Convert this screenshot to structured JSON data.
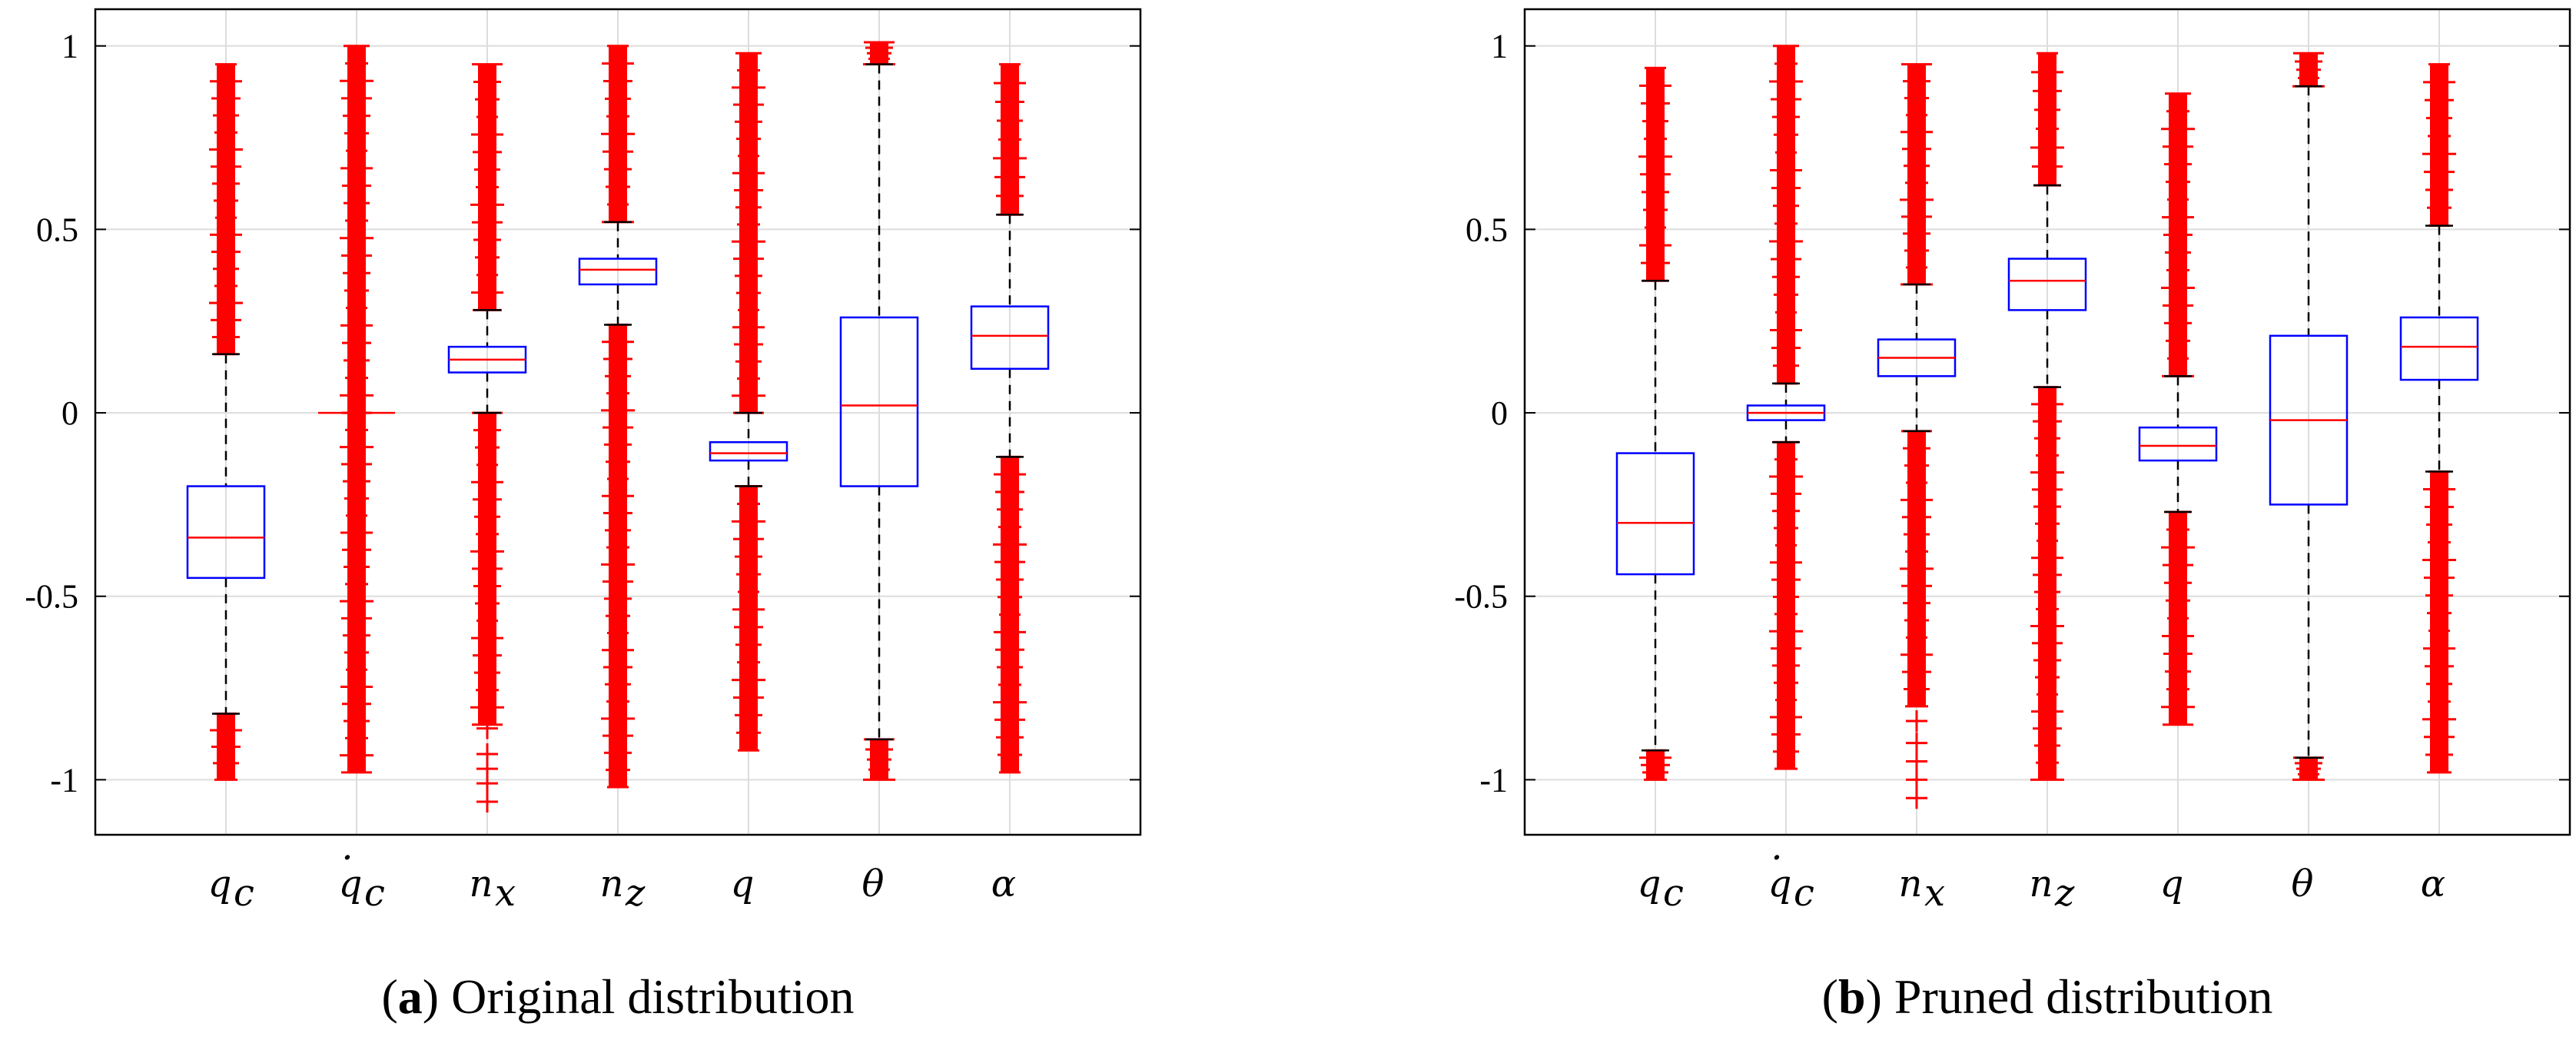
{
  "chart_data": [
    {
      "type": "box",
      "caption_open": "(",
      "caption_letter": "a",
      "caption_close": ")",
      "caption_text": "Original distribution",
      "ylim": [
        -1.15,
        1.1
      ],
      "yticks": [
        1,
        0.5,
        0,
        -0.5,
        -1
      ],
      "ytick_labels": [
        "1",
        "0.5",
        "0",
        "-0.5",
        "-1"
      ],
      "grid": true,
      "categories": [
        "q",
        "q",
        "n",
        "n",
        "q",
        "θ",
        "α"
      ],
      "category_subscripts": [
        "c",
        "c",
        "x",
        "z",
        "",
        "",
        ""
      ],
      "category_dots": [
        false,
        true,
        false,
        false,
        false,
        false,
        false
      ],
      "boxes": [
        {
          "q1": -0.45,
          "median": -0.34,
          "q3": -0.2,
          "whisker_low": -0.82,
          "whisker_high": 0.16,
          "outliers_low": [
            -1.0,
            -0.82
          ],
          "outliers_high": [
            0.16,
            0.95
          ]
        },
        {
          "q1": 0.0,
          "median": 0.0,
          "q3": 0.0,
          "whisker_low": 0.0,
          "whisker_high": 0.0,
          "outliers_low": [
            -0.98,
            0.0
          ],
          "outliers_high": [
            0.0,
            1.0
          ]
        },
        {
          "q1": 0.11,
          "median": 0.145,
          "q3": 0.18,
          "whisker_low": 0.0,
          "whisker_high": 0.28,
          "outliers_low": [
            -0.85,
            0.0
          ],
          "outliers_high": [
            0.28,
            0.95
          ],
          "sparse_low": [
            -0.86,
            -0.93,
            -0.97,
            -1.01,
            -1.06
          ]
        },
        {
          "q1": 0.35,
          "median": 0.39,
          "q3": 0.42,
          "whisker_low": 0.24,
          "whisker_high": 0.52,
          "outliers_low": [
            -1.02,
            0.24
          ],
          "outliers_high": [
            0.52,
            1.0
          ]
        },
        {
          "q1": -0.13,
          "median": -0.11,
          "q3": -0.08,
          "whisker_low": -0.2,
          "whisker_high": 0.0,
          "outliers_low": [
            -0.92,
            -0.2
          ],
          "outliers_high": [
            0.0,
            0.98
          ]
        },
        {
          "q1": -0.2,
          "median": 0.02,
          "q3": 0.26,
          "whisker_low": -0.89,
          "whisker_high": 0.95,
          "outliers_low": [
            -1.0,
            -0.89
          ],
          "outliers_high": [
            0.95,
            1.01
          ]
        },
        {
          "q1": 0.12,
          "median": 0.21,
          "q3": 0.29,
          "whisker_low": -0.12,
          "whisker_high": 0.54,
          "outliers_low": [
            -0.98,
            -0.12
          ],
          "outliers_high": [
            0.54,
            0.95
          ]
        }
      ]
    },
    {
      "type": "box",
      "caption_open": "(",
      "caption_letter": "b",
      "caption_close": ")",
      "caption_text": "Pruned distribution",
      "ylim": [
        -1.15,
        1.1
      ],
      "yticks": [
        1,
        0.5,
        0,
        -0.5,
        -1
      ],
      "ytick_labels": [
        "1",
        "0.5",
        "0",
        "-0.5",
        "-1"
      ],
      "grid": true,
      "categories": [
        "q",
        "q",
        "n",
        "n",
        "q",
        "θ",
        "α"
      ],
      "category_subscripts": [
        "c",
        "c",
        "x",
        "z",
        "",
        "",
        ""
      ],
      "category_dots": [
        false,
        true,
        false,
        false,
        false,
        false,
        false
      ],
      "boxes": [
        {
          "q1": -0.44,
          "median": -0.3,
          "q3": -0.11,
          "whisker_low": -0.92,
          "whisker_high": 0.36,
          "outliers_low": [
            -1.0,
            -0.92
          ],
          "outliers_high": [
            0.36,
            0.94
          ]
        },
        {
          "q1": -0.02,
          "median": 0.0,
          "q3": 0.02,
          "whisker_low": -0.08,
          "whisker_high": 0.08,
          "outliers_low": [
            -0.97,
            -0.08
          ],
          "outliers_high": [
            0.08,
            1.0
          ]
        },
        {
          "q1": 0.1,
          "median": 0.15,
          "q3": 0.2,
          "whisker_low": -0.05,
          "whisker_high": 0.35,
          "outliers_low": [
            -0.8,
            -0.05
          ],
          "outliers_high": [
            0.35,
            0.95
          ],
          "sparse_low": [
            -0.84,
            -0.9,
            -0.95,
            -1.0,
            -1.05
          ]
        },
        {
          "q1": 0.28,
          "median": 0.36,
          "q3": 0.42,
          "whisker_low": 0.07,
          "whisker_high": 0.62,
          "outliers_low": [
            -1.0,
            0.07
          ],
          "outliers_high": [
            0.62,
            0.98
          ]
        },
        {
          "q1": -0.13,
          "median": -0.09,
          "q3": -0.04,
          "whisker_low": -0.27,
          "whisker_high": 0.1,
          "outliers_low": [
            -0.85,
            -0.27
          ],
          "outliers_high": [
            0.1,
            0.87
          ]
        },
        {
          "q1": -0.25,
          "median": -0.02,
          "q3": 0.21,
          "whisker_low": -0.94,
          "whisker_high": 0.89,
          "outliers_low": [
            -1.0,
            -0.94
          ],
          "outliers_high": [
            0.89,
            0.98
          ]
        },
        {
          "q1": 0.09,
          "median": 0.18,
          "q3": 0.26,
          "whisker_low": -0.16,
          "whisker_high": 0.51,
          "outliers_low": [
            -0.98,
            -0.16
          ],
          "outliers_high": [
            0.51,
            0.95
          ]
        }
      ]
    }
  ],
  "colors": {
    "box": "#0000ff",
    "median": "#ff0000",
    "outlier": "#ff0000",
    "grid": "#dddddd",
    "axis": "#000000"
  }
}
